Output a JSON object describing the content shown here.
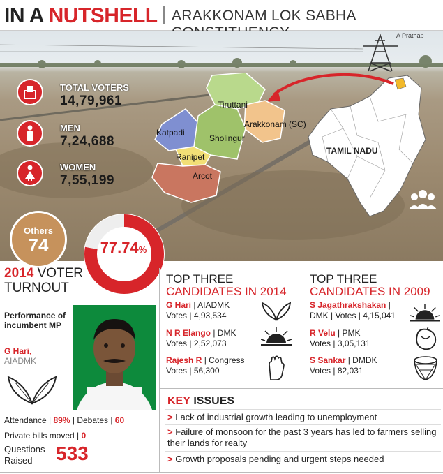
{
  "header": {
    "prefix": "IN A ",
    "highlight": "NUTSHELL",
    "subtitle": "ARAKKONAM LOK SABHA CONSTITUENCY"
  },
  "photo_credit": "A Prathap",
  "stats": [
    {
      "label": "TOTAL VOTERS",
      "value": "14,79,961",
      "icon": "ballot-box-icon"
    },
    {
      "label": "MEN",
      "value": "7,24,688",
      "icon": "man-icon"
    },
    {
      "label": "WOMEN",
      "value": "7,55,199",
      "icon": "woman-icon"
    }
  ],
  "map": {
    "state_label": "TAMIL NADU",
    "segments": [
      "Tiruttani",
      "Arakkonam (SC)",
      "Katpadi",
      "Sholingur",
      "Ranipet",
      "Arcot"
    ]
  },
  "turnout": {
    "others_label": "Others",
    "others_value": "74",
    "percent": "77.74",
    "percent_sign": "%",
    "percent_value": 77.74,
    "year": "2014",
    "label_1": " VOTER",
    "label_2": "TURNOUT"
  },
  "incumbent": {
    "heading": "Performance of incumbent MP",
    "name": "G Hari,",
    "party": "AIADMK",
    "attendance_label": "Attendance | ",
    "attendance_value": "89%",
    "debates_label": " | Debates | ",
    "debates_value": "60",
    "bills_label": "Private bills moved | ",
    "bills_value": "0",
    "questions_label": "Questions Raised",
    "questions_value": "533"
  },
  "candidates_2014": {
    "title_1": "TOP THREE",
    "title_2": "CANDIDATES IN 2014",
    "rows": [
      {
        "name": "G Hari",
        "party": " | AIADMK",
        "votes_label": "Votes | ",
        "votes": "4,93,534",
        "symbol": "two-leaves-icon"
      },
      {
        "name": "N R Elango",
        "party": " | DMK",
        "votes_label": "Votes | ",
        "votes": "2,52,073",
        "symbol": "rising-sun-icon"
      },
      {
        "name": "Rajesh R",
        "party": " | Congress",
        "votes_label": "Votes | ",
        "votes": "56,300",
        "symbol": "hand-icon"
      }
    ]
  },
  "candidates_2009": {
    "title_1": "TOP THREE",
    "title_2": "CANDIDATES IN 2009",
    "rows": [
      {
        "name": "S Jagathrakshakan",
        "party": " |",
        "line2": "DMK | Votes | ",
        "votes": "4,15,041",
        "symbol": "rising-sun-icon"
      },
      {
        "name": "R Velu",
        "party": " | PMK",
        "line2": "Votes | ",
        "votes": "3,05,131",
        "symbol": "mango-icon"
      },
      {
        "name": "S Sankar",
        "party": " | DMDK",
        "line2": "Votes | ",
        "votes": "82,031",
        "symbol": "nagara-drum-icon"
      }
    ]
  },
  "key_issues": {
    "title_1": "KEY",
    "title_2": " ISSUES",
    "items": [
      "Lack of industrial growth leading to unemployment",
      "Failure of monsoon for the past 3 years has led to farmers selling their lands for realty",
      "Growth proposals pending and urgent steps needed"
    ]
  },
  "colors": {
    "accent": "#d7252a",
    "others": "#c6925c"
  }
}
